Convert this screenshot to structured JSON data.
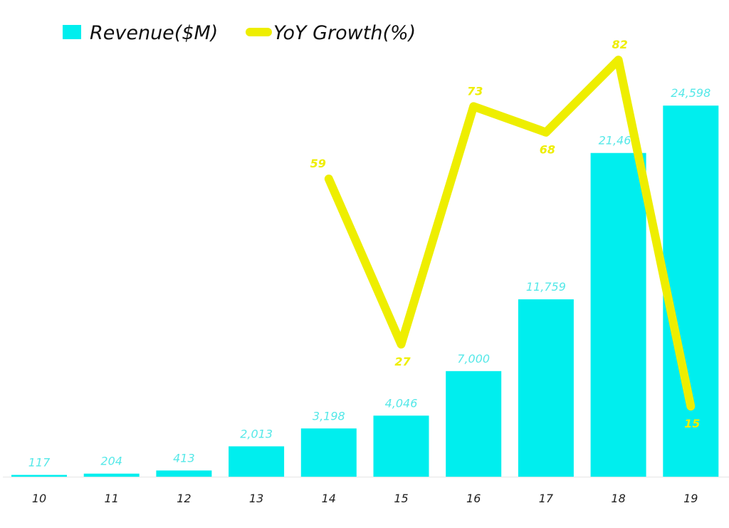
{
  "chart_data": {
    "type": "bar",
    "title": "",
    "xlabel": "",
    "ylabel": "",
    "categories": [
      "10",
      "11",
      "12",
      "13",
      "14",
      "15",
      "16",
      "17",
      "18",
      "19"
    ],
    "series": [
      {
        "name": "Revenue($M)",
        "type": "bar",
        "color": "#00EEEE",
        "label_color": "#55E8E8",
        "values": [
          117,
          204,
          413,
          2013,
          3198,
          4046,
          7000,
          11759,
          21460,
          24598
        ],
        "labels": [
          "117",
          "204",
          "413",
          "2,013",
          "3,198",
          "4,046",
          "7,000",
          "11,759",
          "21,460",
          "24,598"
        ]
      },
      {
        "name": "YoY Growth(%)",
        "type": "line",
        "color": "#EEEE00",
        "label_color": "#EEEE00",
        "values": [
          null,
          null,
          null,
          null,
          59,
          27,
          73,
          68,
          82,
          15
        ],
        "labels": [
          "",
          "",
          "",
          "",
          "59",
          "27",
          "73",
          "68",
          "82",
          "15"
        ]
      }
    ],
    "ylim_primary": [
      0,
      31600
    ],
    "ylim_secondary": [
      -1.4,
      93.6
    ],
    "grid": false,
    "legend": {
      "position": "top-left",
      "entries": [
        "Revenue($M)",
        "YoY Growth(%)"
      ]
    }
  }
}
